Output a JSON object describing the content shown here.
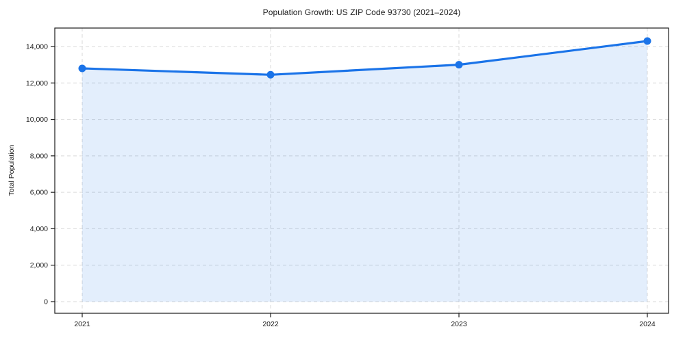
{
  "chart": {
    "title": "Population Growth: US ZIP Code 93730 (2021–2024)",
    "ylabel": "Total Population"
  },
  "chart_data": {
    "type": "area",
    "title": "Population Growth: US ZIP Code 93730 (2021–2024)",
    "xlabel": "",
    "ylabel": "Total Population",
    "categories": [
      "2021",
      "2022",
      "2023",
      "2024"
    ],
    "values": [
      12800,
      12450,
      13000,
      14300
    ],
    "series": [
      {
        "name": "Total Population",
        "values": [
          12800,
          12450,
          13000,
          14300
        ]
      }
    ],
    "ylim": [
      0,
      15000
    ],
    "yticks": [
      0,
      2000,
      4000,
      6000,
      8000,
      10000,
      12000,
      14000
    ],
    "ytick_labels": [
      "0",
      "2,000",
      "4,000",
      "6,000",
      "8,000",
      "10,000",
      "12,000",
      "14,000"
    ],
    "grid": true,
    "grid_style": "dashed",
    "legend": false,
    "colors": {
      "line": "#1a73e8",
      "marker": "#1a73e8",
      "fill": "rgba(26,115,232,0.12)",
      "gridline": "#d9d9d9",
      "spine": "#1a1a1a",
      "tick_text": "#1a1a1a"
    }
  }
}
